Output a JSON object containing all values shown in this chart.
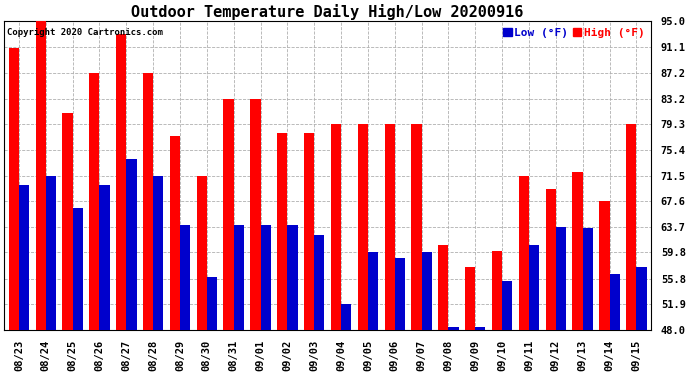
{
  "title": "Outdoor Temperature Daily High/Low 20200916",
  "copyright": "Copyright 2020 Cartronics.com",
  "legend_low": "Low",
  "legend_high": "High",
  "legend_unit": "(°F)",
  "dates": [
    "08/23",
    "08/24",
    "08/25",
    "08/26",
    "08/27",
    "08/28",
    "08/29",
    "08/30",
    "08/31",
    "09/01",
    "09/02",
    "09/03",
    "09/04",
    "09/05",
    "09/06",
    "09/07",
    "09/08",
    "09/09",
    "09/10",
    "09/11",
    "09/12",
    "09/13",
    "09/14",
    "09/15"
  ],
  "high": [
    91.0,
    95.0,
    81.0,
    87.2,
    93.0,
    87.2,
    77.5,
    71.5,
    83.2,
    83.2,
    78.0,
    78.0,
    79.3,
    79.3,
    79.3,
    79.3,
    61.0,
    57.5,
    60.0,
    71.5,
    69.5,
    72.0,
    67.6,
    79.3
  ],
  "low": [
    70.0,
    71.5,
    66.5,
    70.0,
    74.0,
    71.5,
    64.0,
    56.0,
    64.0,
    64.0,
    64.0,
    62.5,
    52.0,
    59.8,
    59.0,
    59.8,
    48.5,
    48.5,
    55.5,
    61.0,
    63.7,
    63.5,
    56.5,
    57.5
  ],
  "high_color": "#ff0000",
  "low_color": "#0000cc",
  "bg_color": "#ffffff",
  "grid_color": "#b0b0b0",
  "yticks": [
    48.0,
    51.9,
    55.8,
    59.8,
    63.7,
    67.6,
    71.5,
    75.4,
    79.3,
    83.2,
    87.2,
    91.1,
    95.0
  ],
  "ymin": 48.0,
  "ymax": 95.0,
  "title_fontsize": 11,
  "tick_fontsize": 7.5,
  "copyright_fontsize": 6.5,
  "legend_fontsize": 8
}
